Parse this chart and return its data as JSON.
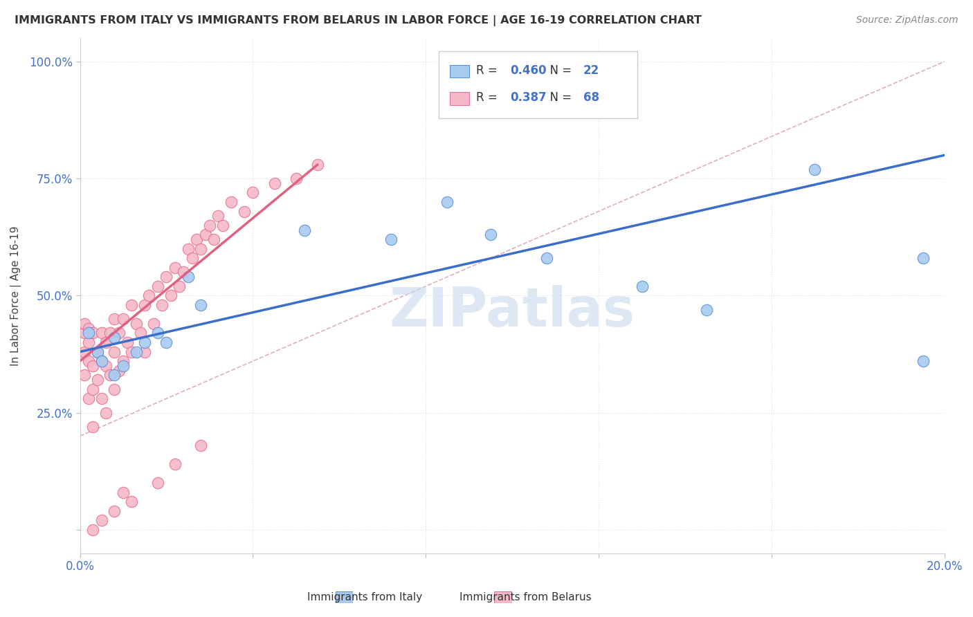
{
  "title": "IMMIGRANTS FROM ITALY VS IMMIGRANTS FROM BELARUS IN LABOR FORCE | AGE 16-19 CORRELATION CHART",
  "source": "Source: ZipAtlas.com",
  "ylabel": "In Labor Force | Age 16-19",
  "xlim": [
    0.0,
    0.2
  ],
  "ylim": [
    -0.05,
    1.05
  ],
  "xticks": [
    0.0,
    0.04,
    0.08,
    0.12,
    0.16,
    0.2
  ],
  "yticks": [
    0.0,
    0.25,
    0.5,
    0.75,
    1.0
  ],
  "italy_R": 0.46,
  "italy_N": 22,
  "belarus_R": 0.387,
  "belarus_N": 68,
  "italy_color": "#A8CBF0",
  "belarus_color": "#F5B8C8",
  "italy_edge_color": "#5B8ED6",
  "belarus_edge_color": "#E87090",
  "italy_line_color": "#3B6EC8",
  "belarus_line_color": "#E06080",
  "ref_line_color": "#E0B0B8",
  "watermark": "ZIPatlas",
  "watermark_color": "#C8D8EE",
  "background_color": "#FFFFFF",
  "grid_color": "#DDDDDD",
  "italy_x": [
    0.002,
    0.004,
    0.005,
    0.008,
    0.008,
    0.01,
    0.013,
    0.015,
    0.018,
    0.02,
    0.025,
    0.028,
    0.052,
    0.072,
    0.085,
    0.095,
    0.108,
    0.13,
    0.145,
    0.17,
    0.195,
    0.195
  ],
  "italy_y": [
    0.42,
    0.38,
    0.36,
    0.33,
    0.41,
    0.35,
    0.38,
    0.4,
    0.42,
    0.4,
    0.54,
    0.48,
    0.64,
    0.62,
    0.7,
    0.63,
    0.58,
    0.52,
    0.47,
    0.77,
    0.58,
    0.36
  ],
  "belarus_x": [
    0.001,
    0.001,
    0.001,
    0.001,
    0.002,
    0.002,
    0.002,
    0.002,
    0.003,
    0.003,
    0.003,
    0.003,
    0.004,
    0.004,
    0.005,
    0.005,
    0.005,
    0.006,
    0.006,
    0.006,
    0.007,
    0.007,
    0.008,
    0.008,
    0.008,
    0.009,
    0.009,
    0.01,
    0.01,
    0.011,
    0.012,
    0.012,
    0.013,
    0.014,
    0.015,
    0.015,
    0.016,
    0.017,
    0.018,
    0.019,
    0.02,
    0.021,
    0.022,
    0.023,
    0.024,
    0.025,
    0.026,
    0.027,
    0.028,
    0.029,
    0.03,
    0.031,
    0.032,
    0.033,
    0.035,
    0.038,
    0.04,
    0.045,
    0.05,
    0.055,
    0.018,
    0.022,
    0.028,
    0.012,
    0.01,
    0.008,
    0.005,
    0.003
  ],
  "belarus_y": [
    0.38,
    0.42,
    0.44,
    0.33,
    0.36,
    0.4,
    0.43,
    0.28,
    0.35,
    0.42,
    0.3,
    0.22,
    0.38,
    0.32,
    0.42,
    0.36,
    0.28,
    0.4,
    0.35,
    0.25,
    0.42,
    0.33,
    0.45,
    0.38,
    0.3,
    0.42,
    0.34,
    0.45,
    0.36,
    0.4,
    0.48,
    0.38,
    0.44,
    0.42,
    0.48,
    0.38,
    0.5,
    0.44,
    0.52,
    0.48,
    0.54,
    0.5,
    0.56,
    0.52,
    0.55,
    0.6,
    0.58,
    0.62,
    0.6,
    0.63,
    0.65,
    0.62,
    0.67,
    0.65,
    0.7,
    0.68,
    0.72,
    0.74,
    0.75,
    0.78,
    0.1,
    0.14,
    0.18,
    0.06,
    0.08,
    0.04,
    0.02,
    0.0
  ],
  "italy_line_x": [
    0.0,
    0.2
  ],
  "italy_line_y": [
    0.38,
    0.8
  ],
  "belarus_line_x": [
    0.0,
    0.055
  ],
  "belarus_line_y": [
    0.36,
    0.78
  ],
  "ref_line_x": [
    0.0,
    0.2
  ],
  "ref_line_y": [
    0.2,
    1.0
  ]
}
